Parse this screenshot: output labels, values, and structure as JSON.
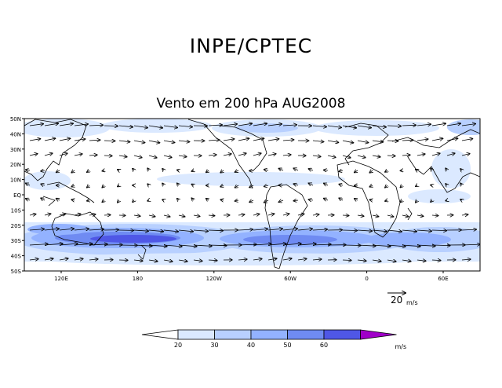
{
  "title": "INPE/CPTEC",
  "subtitle": "Vento em 200 hPa AUG2008",
  "map": {
    "lat_labels": [
      "50N",
      "40N",
      "30N",
      "20N",
      "10N",
      "EQ",
      "10S",
      "20S",
      "30S",
      "40S",
      "50S"
    ],
    "lon_labels": [
      "120E",
      "180",
      "120W",
      "60W",
      "0",
      "60E"
    ],
    "reference_vector": {
      "value": "20",
      "unit": "m/s"
    }
  },
  "colorbar": {
    "ticks": [
      "20",
      "30",
      "40",
      "50",
      "60"
    ],
    "unit": "m/s",
    "colors": [
      "#ffffff",
      "#dbe9ff",
      "#b8d0ff",
      "#93b2ff",
      "#6f8bf2",
      "#4f57e6",
      "#a000c8"
    ]
  }
}
